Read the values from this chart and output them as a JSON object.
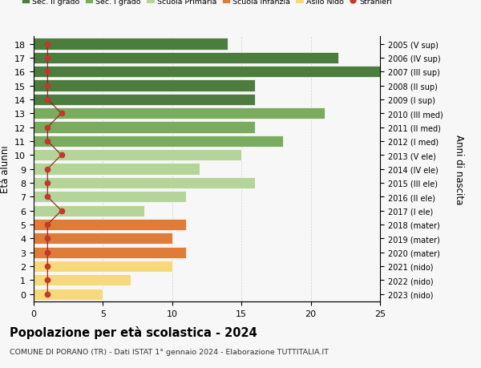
{
  "ages": [
    18,
    17,
    16,
    15,
    14,
    13,
    12,
    11,
    10,
    9,
    8,
    7,
    6,
    5,
    4,
    3,
    2,
    1,
    0
  ],
  "bar_values": [
    14,
    22,
    25,
    16,
    16,
    21,
    16,
    18,
    15,
    12,
    16,
    11,
    8,
    11,
    10,
    11,
    10,
    7,
    5
  ],
  "right_labels": [
    "2005 (V sup)",
    "2006 (IV sup)",
    "2007 (III sup)",
    "2008 (II sup)",
    "2009 (I sup)",
    "2010 (III med)",
    "2011 (II med)",
    "2012 (I med)",
    "2013 (V ele)",
    "2014 (IV ele)",
    "2015 (III ele)",
    "2016 (II ele)",
    "2017 (I ele)",
    "2018 (mater)",
    "2019 (mater)",
    "2020 (mater)",
    "2021 (nido)",
    "2022 (nido)",
    "2023 (nido)"
  ],
  "bar_colors": [
    "#4d7c3f",
    "#4d7c3f",
    "#4d7c3f",
    "#4d7c3f",
    "#4d7c3f",
    "#7aab5e",
    "#7aab5e",
    "#7aab5e",
    "#b5d49a",
    "#b5d49a",
    "#b5d49a",
    "#b5d49a",
    "#b5d49a",
    "#e07c3a",
    "#e07c3a",
    "#e07c3a",
    "#f5d97a",
    "#f5d97a",
    "#f5d97a"
  ],
  "stranieri_values": [
    1,
    1,
    1,
    1,
    1,
    2,
    1,
    1,
    2,
    1,
    1,
    1,
    2,
    1,
    1,
    1,
    1,
    1,
    1
  ],
  "legend_labels": [
    "Sec. II grado",
    "Sec. I grado",
    "Scuola Primaria",
    "Scuola Infanzia",
    "Asilo Nido",
    "Stranieri"
  ],
  "legend_colors": [
    "#4d7c3f",
    "#7aab5e",
    "#b5d49a",
    "#e07c3a",
    "#f5d97a",
    "#c0392b"
  ],
  "title": "Popolazione per età scolastica - 2024",
  "subtitle": "COMUNE DI PORANO (TR) - Dati ISTAT 1° gennaio 2024 - Elaborazione TUTTITALIA.IT",
  "ylabel_left": "Età alunni",
  "ylabel_right": "Anni di nascita",
  "xlim": [
    0,
    25
  ],
  "xticks": [
    0,
    5,
    10,
    15,
    20,
    25
  ],
  "background_color": "#f7f7f7",
  "grid_color": "#cccccc"
}
